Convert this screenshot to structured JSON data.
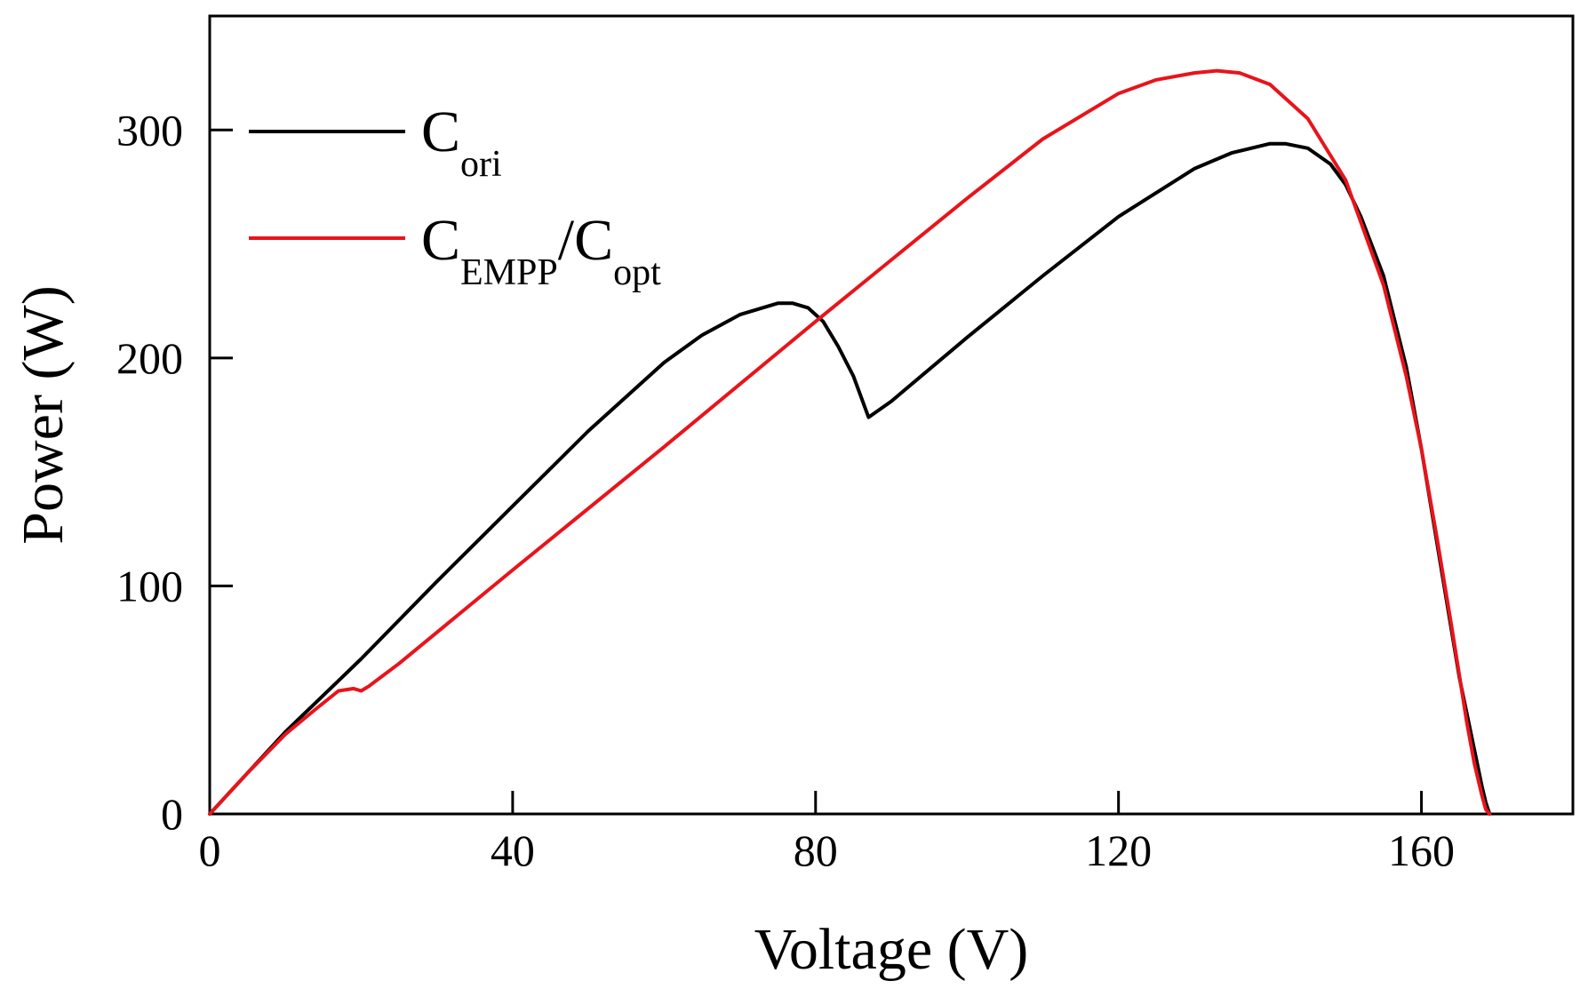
{
  "chart_data": {
    "type": "line",
    "xlabel": "Voltage (V)",
    "ylabel": "Power (W)",
    "xlim": [
      0,
      180
    ],
    "ylim": [
      0,
      350
    ],
    "xticks": [
      0,
      40,
      80,
      120,
      160
    ],
    "yticks": [
      0,
      100,
      200,
      300
    ],
    "grid": false,
    "legend_position": "top-left",
    "series": [
      {
        "name": "C_ori",
        "label_main": "C",
        "label_sub": "ori",
        "color": "#000000",
        "x": [
          0,
          5,
          10,
          15,
          20,
          30,
          40,
          50,
          60,
          65,
          70,
          73,
          75,
          77,
          79,
          81,
          83,
          85,
          87,
          90,
          100,
          110,
          120,
          130,
          135,
          140,
          142,
          145,
          148,
          150,
          152,
          155,
          158,
          160,
          163,
          165,
          167,
          168,
          168.5,
          169
        ],
        "y": [
          0,
          18,
          36,
          52,
          68,
          102,
          135,
          168,
          198,
          210,
          219,
          222,
          224,
          224,
          222,
          216,
          205,
          192,
          174,
          181,
          209,
          236,
          262,
          283,
          290,
          294,
          294,
          292,
          285,
          276,
          262,
          236,
          196,
          160,
          100,
          60,
          28,
          12,
          5,
          0
        ]
      },
      {
        "name": "C_EMPP/C_opt",
        "label_main": "C",
        "label_sub": "EMPP",
        "label_sep": "/C",
        "label_sub2": "opt",
        "color": "#e8141b",
        "x": [
          0,
          5,
          10,
          14,
          17,
          19,
          20,
          21,
          25,
          40,
          60,
          80,
          90,
          100,
          110,
          120,
          125,
          130,
          133,
          136,
          140,
          145,
          150,
          155,
          158,
          160,
          162,
          164,
          166,
          167,
          168,
          168.5,
          169
        ],
        "y": [
          0,
          18,
          35,
          46,
          54,
          55,
          54,
          56,
          66,
          107,
          161,
          216,
          243,
          270,
          296,
          316,
          322,
          325,
          326,
          325,
          320,
          305,
          278,
          232,
          192,
          160,
          122,
          82,
          40,
          22,
          8,
          2,
          0
        ]
      }
    ]
  }
}
